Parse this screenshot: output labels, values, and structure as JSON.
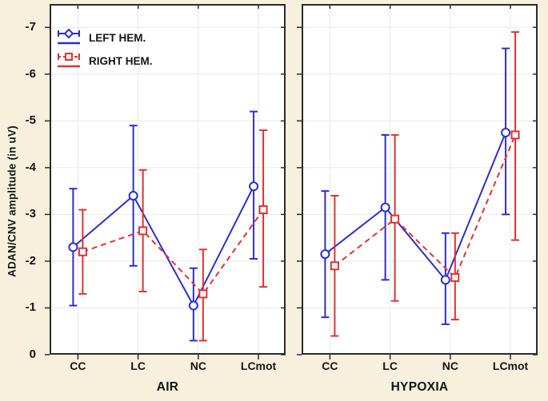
{
  "colors": {
    "background": "#f6f0dc",
    "plot_background": "#ffffff",
    "grid": "#e8e8e8",
    "frame": "#2b2b2b",
    "text": "#151515",
    "left_hem_blue": "#2e2ec8",
    "right_hem_red": "#dd3333"
  },
  "chart_data": {
    "type": "line",
    "subtype": "means-with-error-bars",
    "title": "",
    "ylabel": "ADAN/CNV amplitude (in uV)",
    "xlabel": "",
    "categories": [
      "CC",
      "LC",
      "NC",
      "LCmot"
    ],
    "y_axis": {
      "ticks": [
        0,
        -1,
        -2,
        -3,
        -4,
        -5,
        -6,
        -7
      ],
      "tick_labels": [
        "0",
        "-1",
        "-2",
        "-3",
        "-4",
        "-5",
        "-6",
        "-7"
      ],
      "range": [
        0,
        -7.5
      ],
      "inverted_negative_up": true,
      "grid": true
    },
    "legend": {
      "position": "top-left-of-first-panel",
      "items": [
        {
          "label": "LEFT HEM.",
          "marker": "diamond",
          "line_style": "solid",
          "color": "#2e2ec8"
        },
        {
          "label": "RIGHT HEM.",
          "marker": "square",
          "line_style": "dashed",
          "color": "#dd3333"
        }
      ]
    },
    "panels": [
      {
        "title": "AIR",
        "series": [
          {
            "name": "LEFT HEM.",
            "color": "#2e2ec8",
            "marker": "circle",
            "line_style": "solid",
            "means": [
              -2.3,
              -3.4,
              -1.05,
              -3.6
            ],
            "whisker_low": [
              -1.05,
              -1.9,
              -0.3,
              -2.05
            ],
            "whisker_high": [
              -3.55,
              -4.9,
              -1.85,
              -5.2
            ]
          },
          {
            "name": "RIGHT HEM.",
            "color": "#dd3333",
            "marker": "square",
            "line_style": "dashed",
            "means": [
              -2.2,
              -2.65,
              -1.3,
              -3.1
            ],
            "whisker_low": [
              -1.3,
              -1.35,
              -0.3,
              -1.45
            ],
            "whisker_high": [
              -3.1,
              -3.95,
              -2.25,
              -4.8
            ]
          }
        ]
      },
      {
        "title": "HYPOXIA",
        "series": [
          {
            "name": "LEFT HEM.",
            "color": "#2e2ec8",
            "marker": "circle",
            "line_style": "solid",
            "means": [
              -2.15,
              -3.15,
              -1.6,
              -4.75
            ],
            "whisker_low": [
              -0.8,
              -1.6,
              -0.65,
              -3.0
            ],
            "whisker_high": [
              -3.5,
              -4.7,
              -2.6,
              -6.55
            ]
          },
          {
            "name": "RIGHT HEM.",
            "color": "#dd3333",
            "marker": "square",
            "line_style": "dashed",
            "means": [
              -1.9,
              -2.9,
              -1.65,
              -4.7
            ],
            "whisker_low": [
              -0.4,
              -1.15,
              -0.75,
              -2.45
            ],
            "whisker_high": [
              -3.4,
              -4.7,
              -2.6,
              -6.9
            ]
          }
        ]
      }
    ]
  }
}
